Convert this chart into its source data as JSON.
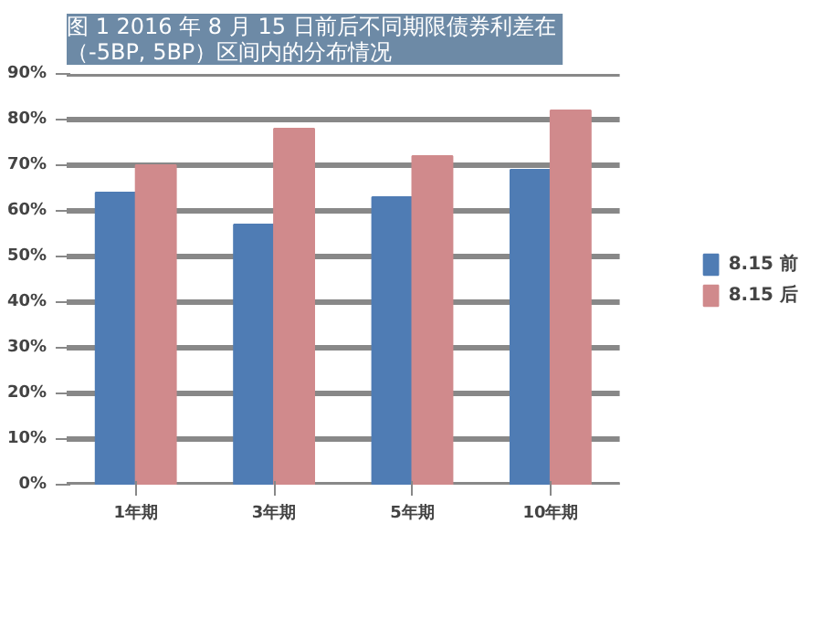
{
  "chart_data": {
    "type": "bar",
    "title": "图 1  2016 年 8 月 15 日前后不同期限债券利差在（-5BP, 5BP）区间内的分布情况",
    "categories": [
      "1年期",
      "3年期",
      "5年期",
      "10年期"
    ],
    "series": [
      {
        "name": "8.15 前",
        "color": "#4f7cb4",
        "values": [
          64,
          57,
          63,
          69
        ]
      },
      {
        "name": "8.15 后",
        "color": "#d08a8c",
        "values": [
          70,
          78,
          72,
          82
        ]
      }
    ],
    "ylim": [
      0,
      90
    ],
    "yticks": [
      {
        "value": 0,
        "label": "0%"
      },
      {
        "value": 10,
        "label": "10%"
      },
      {
        "value": 20,
        "label": "20%"
      },
      {
        "value": 30,
        "label": "30%"
      },
      {
        "value": 40,
        "label": "40%"
      },
      {
        "value": 50,
        "label": "50%"
      },
      {
        "value": 60,
        "label": "60%"
      },
      {
        "value": 70,
        "label": "70%"
      },
      {
        "value": 80,
        "label": "80%"
      },
      {
        "value": 90,
        "label": "90%"
      }
    ],
    "grid": "y",
    "legend": "right"
  }
}
